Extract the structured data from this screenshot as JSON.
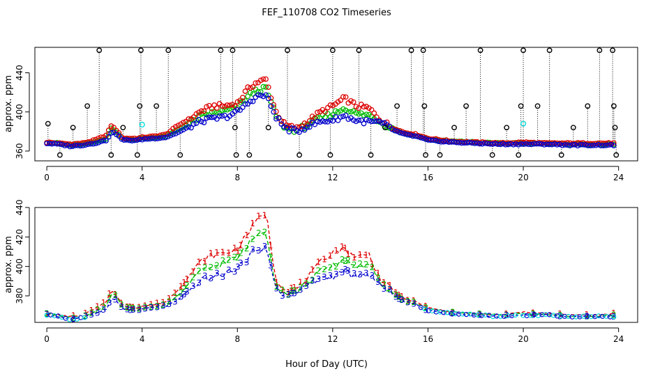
{
  "figure_title": "FEF_110708  CO2 Timeseries",
  "xlabel": "Hour of Day (UTC)",
  "colors": {
    "s1": "#dd0000",
    "s2": "#00bb00",
    "s3": "#0000cc",
    "s4": "#00dddd",
    "spike": "#000000"
  },
  "chart_data": [
    {
      "type": "scatter",
      "title": "",
      "ylabel": "approx. ppm",
      "xlim": [
        -0.5,
        24.8
      ],
      "ylim": [
        350,
        466
      ],
      "xticks": [
        0,
        4,
        8,
        12,
        16,
        20,
        24
      ],
      "xtick_labels": [
        "0",
        "4",
        "8",
        "12",
        "16",
        "20",
        "24"
      ],
      "yticks": [
        360,
        400,
        440
      ],
      "ytick_labels": [
        "360",
        "400",
        "440"
      ],
      "keypoints_hours": [
        0,
        0.5,
        1,
        1.5,
        2,
        2.5,
        2.7,
        2.9,
        3.2,
        3.8,
        4,
        4.5,
        5,
        5.5,
        6,
        6.5,
        7,
        7.5,
        8,
        8.5,
        8.8,
        9.2,
        9.6,
        10,
        10.5,
        11,
        11.5,
        12,
        12.5,
        13,
        13.5,
        14,
        14.5,
        15,
        15.5,
        16,
        17,
        18,
        19,
        20,
        21,
        22,
        23,
        23.8
      ],
      "series": [
        {
          "name": "1",
          "marker": "circle",
          "color": "#dd0000",
          "values_at_keypoints": [
            369,
            368,
            367,
            368,
            371,
            376,
            386,
            382,
            373,
            373,
            374,
            375,
            377,
            386,
            393,
            401,
            406,
            406,
            409,
            425,
            430,
            433,
            401,
            386,
            383,
            391,
            400,
            406,
            414,
            406,
            404,
            392,
            384,
            379,
            377,
            373,
            370,
            369,
            368,
            369,
            368,
            368,
            368,
            368
          ]
        },
        {
          "name": "2",
          "marker": "circle",
          "color": "#00bb00",
          "values_at_keypoints": [
            369,
            368,
            366,
            367,
            369,
            373,
            383,
            380,
            372,
            372,
            373,
            374,
            375,
            382,
            389,
            396,
            399,
            401,
            405,
            417,
            422,
            424,
            397,
            384,
            381,
            388,
            394,
            398,
            404,
            398,
            397,
            390,
            383,
            378,
            376,
            372,
            370,
            369,
            368,
            368,
            368,
            367,
            367,
            367
          ]
        },
        {
          "name": "3",
          "marker": "circle",
          "color": "#0000cc",
          "values_at_keypoints": [
            368,
            367,
            365,
            366,
            368,
            371,
            379,
            378,
            371,
            371,
            372,
            373,
            374,
            379,
            385,
            391,
            393,
            395,
            400,
            410,
            416,
            417,
            396,
            383,
            380,
            386,
            390,
            392,
            396,
            391,
            390,
            389,
            382,
            377,
            375,
            371,
            369,
            368,
            367,
            367,
            367,
            366,
            366,
            366
          ]
        }
      ],
      "spikes": [
        {
          "x": 0.05,
          "y": 388
        },
        {
          "x": 0.55,
          "y": 356
        },
        {
          "x": 1.1,
          "y": 384
        },
        {
          "x": 1.7,
          "y": 406
        },
        {
          "x": 2.2,
          "y": 463
        },
        {
          "x": 2.7,
          "y": 356
        },
        {
          "x": 3.2,
          "y": 384
        },
        {
          "x": 3.8,
          "y": 356
        },
        {
          "x": 3.9,
          "y": 406
        },
        {
          "x": 3.95,
          "y": 463
        },
        {
          "x": 4.6,
          "y": 406
        },
        {
          "x": 5.1,
          "y": 463
        },
        {
          "x": 5.6,
          "y": 356
        },
        {
          "x": 7.3,
          "y": 463
        },
        {
          "x": 7.8,
          "y": 463
        },
        {
          "x": 7.9,
          "y": 384
        },
        {
          "x": 7.95,
          "y": 356
        },
        {
          "x": 8.5,
          "y": 356
        },
        {
          "x": 9.3,
          "y": 384
        },
        {
          "x": 10.1,
          "y": 463
        },
        {
          "x": 10.6,
          "y": 356
        },
        {
          "x": 11.9,
          "y": 356
        },
        {
          "x": 12.0,
          "y": 463
        },
        {
          "x": 13.1,
          "y": 463
        },
        {
          "x": 13.6,
          "y": 356
        },
        {
          "x": 14.2,
          "y": 384
        },
        {
          "x": 14.7,
          "y": 406
        },
        {
          "x": 15.3,
          "y": 463
        },
        {
          "x": 15.8,
          "y": 463
        },
        {
          "x": 15.85,
          "y": 406
        },
        {
          "x": 15.9,
          "y": 356
        },
        {
          "x": 16.5,
          "y": 356
        },
        {
          "x": 17.1,
          "y": 384
        },
        {
          "x": 17.6,
          "y": 406
        },
        {
          "x": 18.2,
          "y": 463
        },
        {
          "x": 18.7,
          "y": 356
        },
        {
          "x": 19.3,
          "y": 384
        },
        {
          "x": 19.8,
          "y": 356
        },
        {
          "x": 19.9,
          "y": 406
        },
        {
          "x": 20.0,
          "y": 463
        },
        {
          "x": 20.6,
          "y": 406
        },
        {
          "x": 21.1,
          "y": 463
        },
        {
          "x": 21.6,
          "y": 356
        },
        {
          "x": 22.1,
          "y": 384
        },
        {
          "x": 22.7,
          "y": 406
        },
        {
          "x": 23.2,
          "y": 463
        },
        {
          "x": 23.75,
          "y": 463
        },
        {
          "x": 23.8,
          "y": 406
        },
        {
          "x": 23.85,
          "y": 384
        },
        {
          "x": 23.9,
          "y": 356
        }
      ],
      "cyan_points": [
        {
          "x": 4.0,
          "y": 387
        },
        {
          "x": 20.0,
          "y": 388
        }
      ]
    },
    {
      "type": "line",
      "title": "",
      "ylabel": "approx. ppm",
      "xlim": [
        -0.5,
        24.8
      ],
      "ylim": [
        362,
        440
      ],
      "xticks": [
        0,
        4,
        8,
        12,
        16,
        20,
        24
      ],
      "xtick_labels": [
        "0",
        "4",
        "8",
        "12",
        "16",
        "20",
        "24"
      ],
      "yticks": [
        380,
        400,
        420,
        440
      ],
      "ytick_labels": [
        "380",
        "400",
        "420",
        "440"
      ],
      "gaps": [
        [
          1.5,
          1.55
        ],
        [
          3.2,
          3.25
        ],
        [
          15.8,
          15.85
        ],
        [
          19.8,
          19.85
        ]
      ],
      "keypoints_hours": [
        0,
        0.5,
        1,
        1.5,
        2,
        2.5,
        2.7,
        2.9,
        3.2,
        3.8,
        4,
        4.5,
        5,
        5.5,
        6,
        6.5,
        7,
        7.5,
        8,
        8.5,
        8.8,
        9.2,
        9.6,
        10,
        10.5,
        11,
        11.5,
        12,
        12.5,
        13,
        13.5,
        14,
        14.5,
        15,
        15.5,
        16,
        17,
        18,
        19,
        20,
        21,
        22,
        23,
        23.8
      ],
      "series": [
        {
          "name": "1",
          "marker": "1",
          "color": "#dd0000",
          "values_at_keypoints": [
            368,
            367,
            366,
            367,
            371,
            376,
            384,
            381,
            373,
            372,
            373,
            374,
            376,
            384,
            394,
            404,
            408,
            409,
            412,
            424,
            431,
            437,
            392,
            384,
            385,
            393,
            403,
            410,
            412,
            406,
            409,
            391,
            384,
            378,
            376,
            372,
            369,
            368,
            367,
            369,
            368,
            367,
            367,
            368
          ]
        },
        {
          "name": "2",
          "marker": "2",
          "color": "#00bb00",
          "values_at_keypoints": [
            368,
            367,
            365,
            366,
            369,
            373,
            382,
            380,
            372,
            371,
            372,
            373,
            374,
            380,
            389,
            397,
            400,
            403,
            406,
            416,
            421,
            425,
            388,
            382,
            383,
            390,
            397,
            400,
            405,
            400,
            402,
            388,
            382,
            377,
            375,
            371,
            369,
            368,
            367,
            368,
            367,
            366,
            366,
            367
          ]
        },
        {
          "name": "3",
          "marker": "3",
          "color": "#0000cc",
          "values_at_keypoints": [
            367,
            366,
            364,
            365,
            368,
            371,
            378,
            377,
            371,
            370,
            371,
            372,
            373,
            377,
            384,
            391,
            393,
            395,
            399,
            406,
            413,
            412,
            386,
            380,
            382,
            388,
            392,
            393,
            397,
            392,
            395,
            387,
            381,
            376,
            374,
            370,
            368,
            367,
            366,
            367,
            367,
            366,
            366,
            366
          ]
        }
      ]
    }
  ]
}
